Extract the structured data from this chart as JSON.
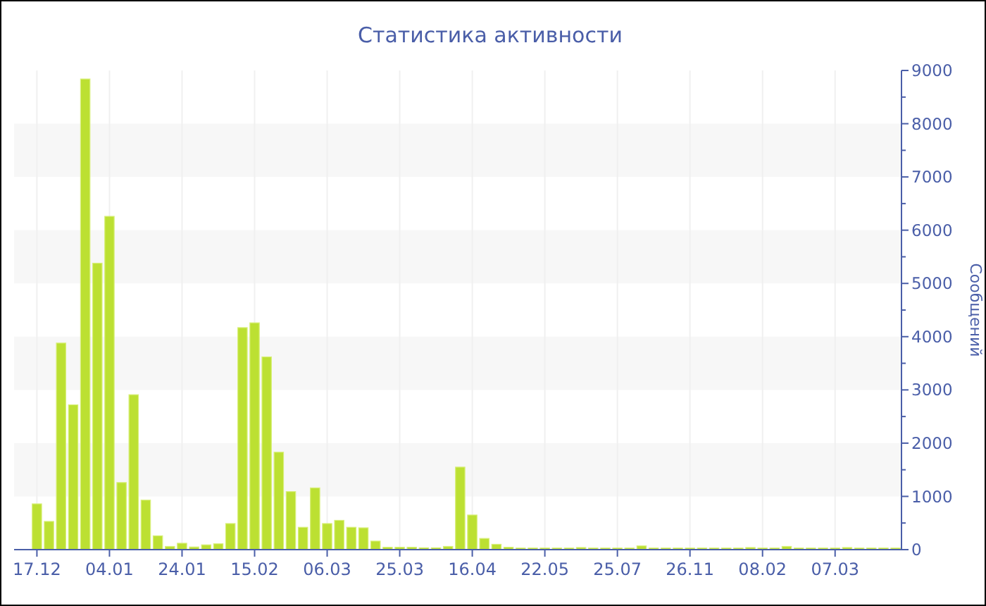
{
  "chart_data": {
    "type": "bar",
    "title": "Статистика активности",
    "ylabel": "Сообщений",
    "categories": [
      "17.12",
      null,
      null,
      null,
      null,
      null,
      "04.01",
      null,
      null,
      null,
      null,
      null,
      "24.01",
      null,
      null,
      null,
      null,
      null,
      "15.02",
      null,
      null,
      null,
      null,
      null,
      "06.03",
      null,
      null,
      null,
      null,
      null,
      "25.03",
      null,
      null,
      null,
      null,
      null,
      "16.04",
      null,
      null,
      null,
      null,
      null,
      "22.05",
      null,
      null,
      null,
      null,
      null,
      "25.07",
      null,
      null,
      null,
      null,
      null,
      "26.11",
      null,
      null,
      null,
      null,
      null,
      "08.02",
      null,
      null,
      null,
      null,
      null,
      "07.03",
      null,
      null,
      null,
      null,
      null
    ],
    "values": [
      860,
      530,
      3880,
      2720,
      8840,
      5380,
      6260,
      1260,
      2910,
      930,
      260,
      60,
      120,
      50,
      90,
      110,
      490,
      4170,
      4260,
      3620,
      1830,
      1090,
      420,
      1160,
      490,
      550,
      420,
      410,
      160,
      45,
      45,
      45,
      35,
      35,
      60,
      1550,
      650,
      210,
      100,
      45,
      30,
      30,
      30,
      30,
      30,
      40,
      30,
      30,
      30,
      30,
      70,
      30,
      30,
      30,
      30,
      30,
      30,
      30,
      30,
      40,
      30,
      30,
      60,
      30,
      30,
      30,
      30,
      40,
      30,
      30,
      30,
      30
    ],
    "color": "#bce032",
    "ylim": [
      0,
      9000
    ],
    "yticks": [
      0,
      {
        "value": 500,
        "label": null
      },
      1000,
      {
        "value": 1500,
        "label": null
      },
      2000,
      {
        "value": 2500,
        "label": null
      },
      3000,
      {
        "value": 3500,
        "label": null
      },
      4000,
      {
        "value": 4500,
        "label": null
      },
      5000,
      {
        "value": 5500,
        "label": null
      },
      6000,
      {
        "value": 6500,
        "label": null
      },
      7000,
      {
        "value": 7500,
        "label": null
      },
      8000,
      {
        "value": 8500,
        "label": null
      },
      9000
    ],
    "bands": [
      {
        "axis": "y",
        "from": 1000,
        "to": 2000,
        "color": "#f7f7f7"
      },
      {
        "axis": "y",
        "from": 3000,
        "to": 4000,
        "color": "#f7f7f7"
      },
      {
        "axis": "y",
        "from": 5000,
        "to": 6000,
        "color": "#f7f7f7"
      },
      {
        "axis": "y",
        "from": 7000,
        "to": 8000,
        "color": "#f7f7f7"
      }
    ],
    "grid": "x"
  }
}
